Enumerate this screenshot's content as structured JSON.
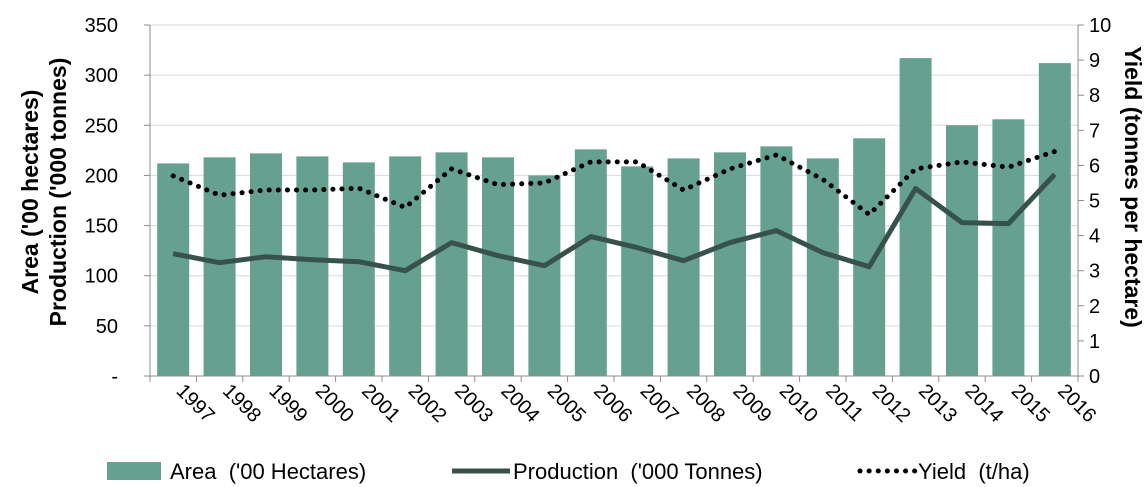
{
  "chart_data": {
    "type": "bar",
    "categories": [
      "1997",
      "1998",
      "1999",
      "2000",
      "2001",
      "2002",
      "2003",
      "2004",
      "2005",
      "2006",
      "2007",
      "2008",
      "2009",
      "2010",
      "2011",
      "2012",
      "2013",
      "2014",
      "2015",
      "2016"
    ],
    "series": [
      {
        "name": "Area  ('00 Hectares)",
        "type": "bar",
        "axis": "left",
        "values": [
          212,
          218,
          222,
          219,
          213,
          219,
          223,
          218,
          200,
          226,
          209,
          217,
          223,
          229,
          217,
          237,
          317,
          250,
          256,
          312
        ]
      },
      {
        "name": "Production  ('000 Tonnes)",
        "type": "line",
        "axis": "left",
        "values": [
          122,
          113,
          119,
          116,
          114,
          105,
          133,
          120,
          110,
          139,
          128,
          115,
          133,
          145,
          123,
          109,
          187,
          153,
          152,
          201
        ]
      },
      {
        "name": "Yield  (t/ha)",
        "type": "line-dotted",
        "axis": "right",
        "values": [
          5.7,
          5.15,
          5.3,
          5.3,
          5.35,
          4.8,
          5.9,
          5.45,
          5.5,
          6.1,
          6.1,
          5.3,
          5.9,
          6.3,
          5.6,
          4.6,
          5.9,
          6.1,
          5.95,
          6.4
        ]
      }
    ],
    "ylabel_lines": [
      "Area ('00 hectares)",
      "Production ('000 tonnes)"
    ],
    "y2label": "Yield (tonnes per hectare)",
    "ylim": [
      0,
      350
    ],
    "yticks": [
      0,
      50,
      100,
      150,
      200,
      250,
      300,
      350
    ],
    "ytick_labels": [
      "-",
      "50",
      "100",
      "150",
      "200",
      "250",
      "300",
      "350"
    ],
    "y2lim": [
      0,
      10
    ],
    "y2ticks": [
      0,
      1,
      2,
      3,
      4,
      5,
      6,
      7,
      8,
      9,
      10
    ],
    "grid": "horizontal",
    "legend_position": "bottom",
    "colors": {
      "bar": "#66a091",
      "production": "#36524a",
      "yield": "#000000",
      "grid": "#d9d9d9",
      "axis": "#8c8c8c"
    }
  }
}
